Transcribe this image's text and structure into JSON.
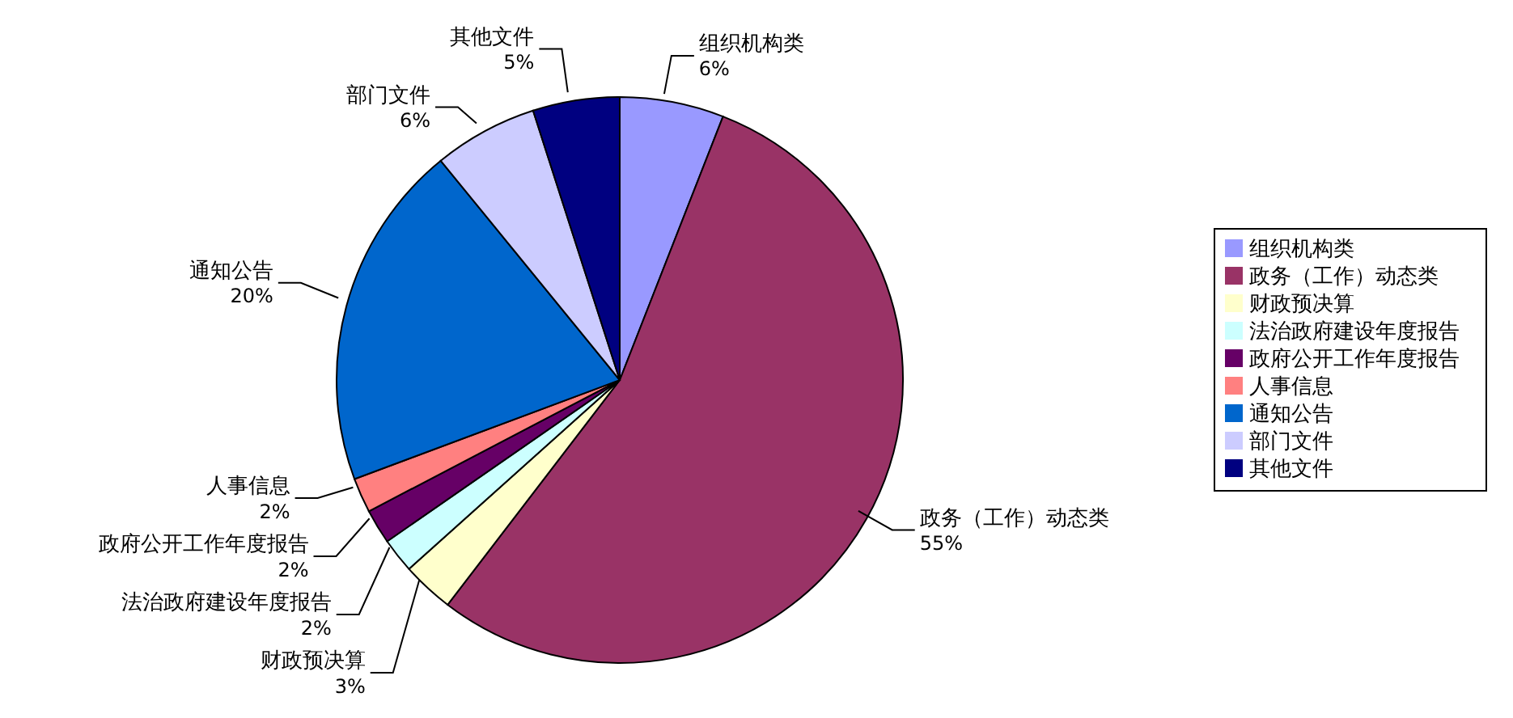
{
  "chart_data": {
    "type": "pie",
    "categories": [
      "组织机构类",
      "政务（工作）动态类",
      "财政预决算",
      "法治政府建设年度报告",
      "政府公开工作年度报告",
      "人事信息",
      "通知公告",
      "部门文件",
      "其他文件"
    ],
    "values": [
      6,
      55,
      3,
      2,
      2,
      2,
      20,
      6,
      5
    ],
    "value_labels": [
      "6%",
      "55%",
      "3%",
      "2%",
      "2%",
      "2%",
      "20%",
      "6%",
      "5%"
    ],
    "colors": [
      "#9999ff",
      "#993366",
      "#ffffcc",
      "#ccffff",
      "#660066",
      "#ff8080",
      "#0066cc",
      "#ccccff",
      "#000080"
    ],
    "legend": "right"
  }
}
